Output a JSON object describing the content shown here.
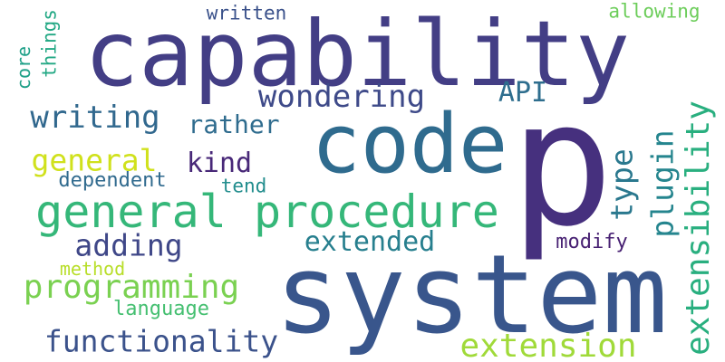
{
  "words": [
    {
      "text": "p",
      "color": "#46307e"
    },
    {
      "text": "system",
      "color": "#39568c"
    },
    {
      "text": "capability",
      "color": "#433e85"
    },
    {
      "text": "code",
      "color": "#2f6b8e"
    },
    {
      "text": "general procedure",
      "color": "#35b779"
    },
    {
      "text": "extensibility",
      "color": "#29af7f"
    },
    {
      "text": "wondering",
      "color": "#3e4a89"
    },
    {
      "text": "writing",
      "color": "#31688e"
    },
    {
      "text": "programming",
      "color": "#7ad151"
    },
    {
      "text": "extension",
      "color": "#a0da39"
    },
    {
      "text": "functionality",
      "color": "#3b528b"
    },
    {
      "text": "adding",
      "color": "#3f4788"
    },
    {
      "text": "type",
      "color": "#2a788e"
    },
    {
      "text": "plugin",
      "color": "#25858e"
    },
    {
      "text": "API",
      "color": "#2e6e8e"
    },
    {
      "text": "general",
      "color": "#d0e11c"
    },
    {
      "text": "extended",
      "color": "#277f8e"
    },
    {
      "text": "kind",
      "color": "#482878"
    },
    {
      "text": "rather",
      "color": "#2f6c8e"
    },
    {
      "text": "dependent",
      "color": "#306a8e"
    },
    {
      "text": "language",
      "color": "#44bf70"
    },
    {
      "text": "modify",
      "color": "#482173"
    },
    {
      "text": "method",
      "color": "#b8de29"
    },
    {
      "text": "tend",
      "color": "#228d8d"
    },
    {
      "text": "written",
      "color": "#3b528b"
    },
    {
      "text": "allowing",
      "color": "#6ccd5a"
    },
    {
      "text": "things",
      "color": "#22a884"
    },
    {
      "text": "core",
      "color": "#1fa088"
    }
  ]
}
